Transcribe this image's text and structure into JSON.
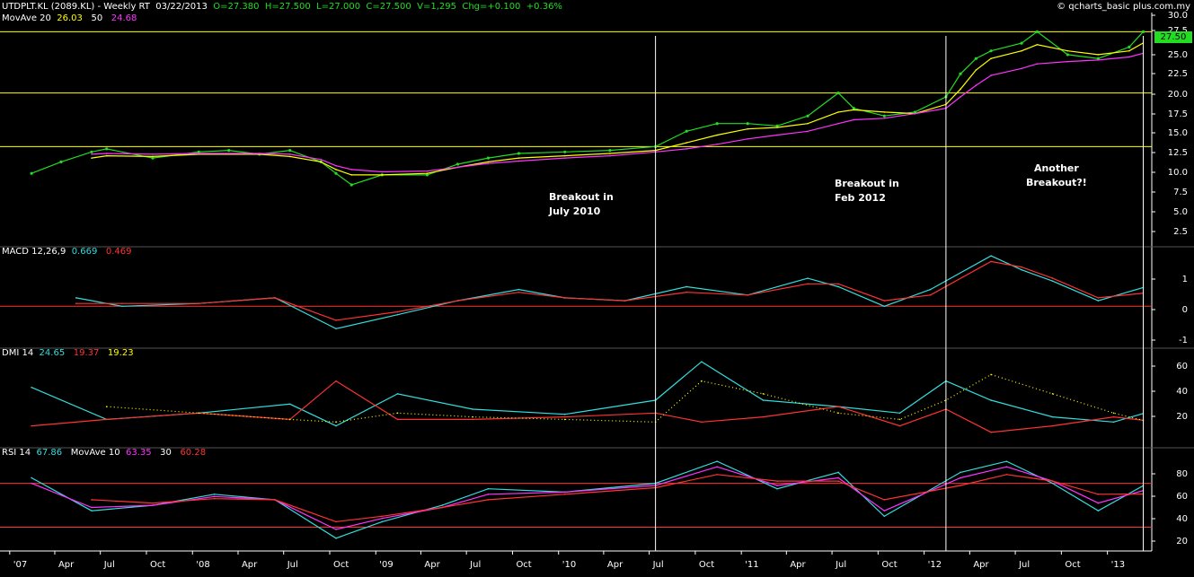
{
  "header": {
    "symbol": "UTDPLT.KL (2089.KL) - Weekly RT",
    "date": "03/22/2013",
    "open": "O=27.380",
    "high": "H=27.500",
    "low": "L=27.000",
    "close": "C=27.500",
    "volume": "V=1,295",
    "change": "Chg=+0.100",
    "pct": "+0.36%",
    "copyright": "© qcharts_basic plus.com.my"
  },
  "mov_ave": {
    "label": "MovAve 20",
    "v20": "26.03",
    "p50": "50",
    "v50": "24.68"
  },
  "macd": {
    "label": "MACD 12,26,9",
    "v1": "0.669",
    "v2": "0.469"
  },
  "dmi": {
    "label": "DMI 14",
    "v1": "24.65",
    "v2": "19.37",
    "v3": "19.23"
  },
  "rsi": {
    "label": "RSI 14",
    "v1": "67.86",
    "ma_label": "MovAve 10",
    "ma": "63.35",
    "p30": "30",
    "v30": "60.28"
  },
  "last_price": "27.50",
  "annotations": [
    {
      "text": [
        "Breakout in",
        "July 2010"
      ]
    },
    {
      "text": [
        "Breakout in",
        "Feb 2012"
      ]
    },
    {
      "text": [
        "Another",
        "Breakout?!"
      ]
    }
  ],
  "x_labels": [
    "'07",
    "Apr",
    "Jul",
    "Oct",
    "'08",
    "Apr",
    "Jul",
    "Oct",
    "'09",
    "Apr",
    "Jul",
    "Oct",
    "'10",
    "Apr",
    "Jul",
    "Oct",
    "'11",
    "Apr",
    "Jul",
    "Oct",
    "'12",
    "Apr",
    "Jul",
    "Oct",
    "'13"
  ],
  "colors": {
    "background": "#000000",
    "price": "#22dd22",
    "ma20": "#ffff00",
    "ma50": "#ff33ff",
    "macd": "#33dddd",
    "signal": "#ff3333",
    "resistance": "#ffff00"
  },
  "chart_data": [
    {
      "type": "line",
      "title": "UTDPLT.KL (2089.KL) - Weekly RT",
      "panel": "price",
      "y_ticks": [
        "30.0",
        "27.5",
        "25.0",
        "22.5",
        "20.0",
        "17.5",
        "15.0",
        "12.5",
        "10.0",
        "7.5",
        "5.0",
        "2.5"
      ],
      "ylim": [
        0,
        30
      ],
      "resistance_levels": [
        27.5,
        19.5,
        12.5
      ],
      "x": [
        "2007-02",
        "2007-04",
        "2007-06",
        "2007-07",
        "2007-10",
        "2008-01",
        "2008-03",
        "2008-05",
        "2008-07",
        "2008-09",
        "2008-10",
        "2008-11",
        "2009-01",
        "2009-04",
        "2009-06",
        "2009-08",
        "2009-10",
        "2010-01",
        "2010-04",
        "2010-07",
        "2010-09",
        "2010-11",
        "2011-01",
        "2011-03",
        "2011-05",
        "2011-07",
        "2011-08",
        "2011-10",
        "2011-12",
        "2012-02",
        "2012-03",
        "2012-04",
        "2012-05",
        "2012-07",
        "2012-08",
        "2012-10",
        "2012-12",
        "2013-02",
        "2013-03"
      ],
      "series": [
        {
          "name": "Price",
          "values": [
            9.0,
            10.5,
            11.8,
            12.2,
            11.0,
            11.8,
            12.0,
            11.5,
            12.0,
            10.5,
            9.0,
            7.5,
            8.8,
            8.8,
            10.2,
            11.0,
            11.6,
            11.8,
            12.0,
            12.5,
            14.5,
            15.5,
            15.5,
            15.2,
            16.5,
            19.5,
            17.5,
            16.5,
            17.0,
            19.0,
            22.0,
            24.0,
            25.0,
            26.0,
            27.5,
            24.5,
            24.0,
            25.5,
            27.5
          ]
        },
        {
          "name": "MovAve 20",
          "values": [
            null,
            null,
            11.0,
            11.3,
            11.2,
            11.5,
            11.5,
            11.5,
            11.2,
            10.5,
            9.5,
            8.8,
            8.8,
            9.0,
            9.8,
            10.5,
            11.0,
            11.3,
            11.6,
            12.0,
            13.0,
            14.0,
            14.8,
            15.0,
            15.5,
            17.0,
            17.3,
            17.0,
            16.8,
            18.0,
            20.0,
            22.5,
            24.0,
            25.0,
            25.8,
            25.0,
            24.5,
            25.0,
            26.03
          ]
        },
        {
          "name": "MovAve 50",
          "values": [
            null,
            null,
            11.5,
            11.6,
            11.5,
            11.6,
            11.6,
            11.6,
            11.5,
            10.8,
            10.0,
            9.5,
            9.2,
            9.3,
            9.8,
            10.3,
            10.6,
            11.0,
            11.3,
            11.8,
            12.2,
            12.8,
            13.5,
            14.0,
            14.5,
            15.5,
            16.0,
            16.2,
            16.8,
            17.5,
            19.0,
            20.5,
            21.8,
            22.7,
            23.3,
            23.6,
            23.8,
            24.2,
            24.68
          ]
        }
      ]
    },
    {
      "type": "line",
      "title": "MACD 12,26,9",
      "panel": "macd",
      "y_ticks": [
        "1",
        "0",
        "-1"
      ],
      "ylim": [
        -1.4,
        1.9
      ],
      "x": [
        "2007-05",
        "2007-08",
        "2008-01",
        "2008-06",
        "2008-10",
        "2009-02",
        "2009-06",
        "2009-10",
        "2010-01",
        "2010-05",
        "2010-09",
        "2011-01",
        "2011-05",
        "2011-07",
        "2011-10",
        "2012-01",
        "2012-05",
        "2012-07",
        "2012-09",
        "2012-12",
        "2013-03"
      ],
      "series": [
        {
          "name": "MACD",
          "values": [
            0.3,
            0.0,
            0.1,
            0.3,
            -0.8,
            -0.3,
            0.2,
            0.6,
            0.3,
            0.2,
            0.7,
            0.4,
            1.0,
            0.7,
            0.0,
            0.6,
            1.8,
            1.3,
            0.9,
            0.2,
            0.669
          ]
        },
        {
          "name": "Signal",
          "values": [
            0.1,
            0.1,
            0.1,
            0.3,
            -0.5,
            -0.2,
            0.2,
            0.5,
            0.3,
            0.2,
            0.5,
            0.4,
            0.8,
            0.8,
            0.2,
            0.4,
            1.6,
            1.4,
            1.0,
            0.3,
            0.469
          ]
        }
      ]
    },
    {
      "type": "line",
      "title": "DMI 14",
      "panel": "dmi",
      "y_ticks": [
        "60",
        "40",
        "20"
      ],
      "ylim": [
        0,
        70
      ],
      "x": [
        "2007-02",
        "2007-07",
        "2008-01",
        "2008-07",
        "2008-10",
        "2009-02",
        "2009-07",
        "2010-01",
        "2010-07",
        "2010-10",
        "2011-02",
        "2011-07",
        "2011-11",
        "2012-02",
        "2012-05",
        "2012-09",
        "2013-01",
        "2013-03"
      ],
      "series": [
        {
          "name": "+DI",
          "values": [
            45,
            20,
            25,
            32,
            15,
            40,
            28,
            24,
            35,
            65,
            35,
            30,
            25,
            50,
            35,
            22,
            18,
            24.65
          ]
        },
        {
          "name": "-DI",
          "values": [
            15,
            20,
            25,
            20,
            50,
            20,
            20,
            22,
            25,
            18,
            22,
            30,
            15,
            28,
            10,
            15,
            22,
            19.37
          ]
        },
        {
          "name": "ADX",
          "values": [
            null,
            30,
            25,
            20,
            18,
            25,
            22,
            20,
            18,
            50,
            40,
            25,
            20,
            35,
            55,
            40,
            25,
            19.23
          ]
        }
      ]
    },
    {
      "type": "line",
      "title": "RSI 14",
      "panel": "rsi",
      "y_ticks": [
        "80",
        "60",
        "40",
        "20"
      ],
      "ylim": [
        10,
        95
      ],
      "reference_lines": [
        70,
        30
      ],
      "x": [
        "2007-02",
        "2007-06",
        "2007-10",
        "2008-02",
        "2008-06",
        "2008-10",
        "2009-01",
        "2009-05",
        "2009-08",
        "2010-01",
        "2010-07",
        "2010-11",
        "2011-03",
        "2011-07",
        "2011-10",
        "2012-03",
        "2012-06",
        "2012-09",
        "2012-12",
        "2013-03"
      ],
      "series": [
        {
          "name": "RSI",
          "values": [
            75,
            45,
            50,
            60,
            55,
            20,
            35,
            50,
            65,
            62,
            70,
            90,
            65,
            80,
            40,
            80,
            90,
            70,
            45,
            67.86
          ]
        },
        {
          "name": "MovAve 10",
          "values": [
            70,
            48,
            50,
            58,
            55,
            28,
            38,
            48,
            60,
            62,
            68,
            85,
            68,
            75,
            45,
            75,
            85,
            72,
            52,
            63.35
          ]
        },
        {
          "name": "MovAve 30",
          "values": [
            null,
            55,
            52,
            56,
            55,
            35,
            40,
            48,
            55,
            60,
            66,
            78,
            72,
            72,
            55,
            68,
            78,
            72,
            60,
            60.28
          ]
        }
      ]
    }
  ]
}
